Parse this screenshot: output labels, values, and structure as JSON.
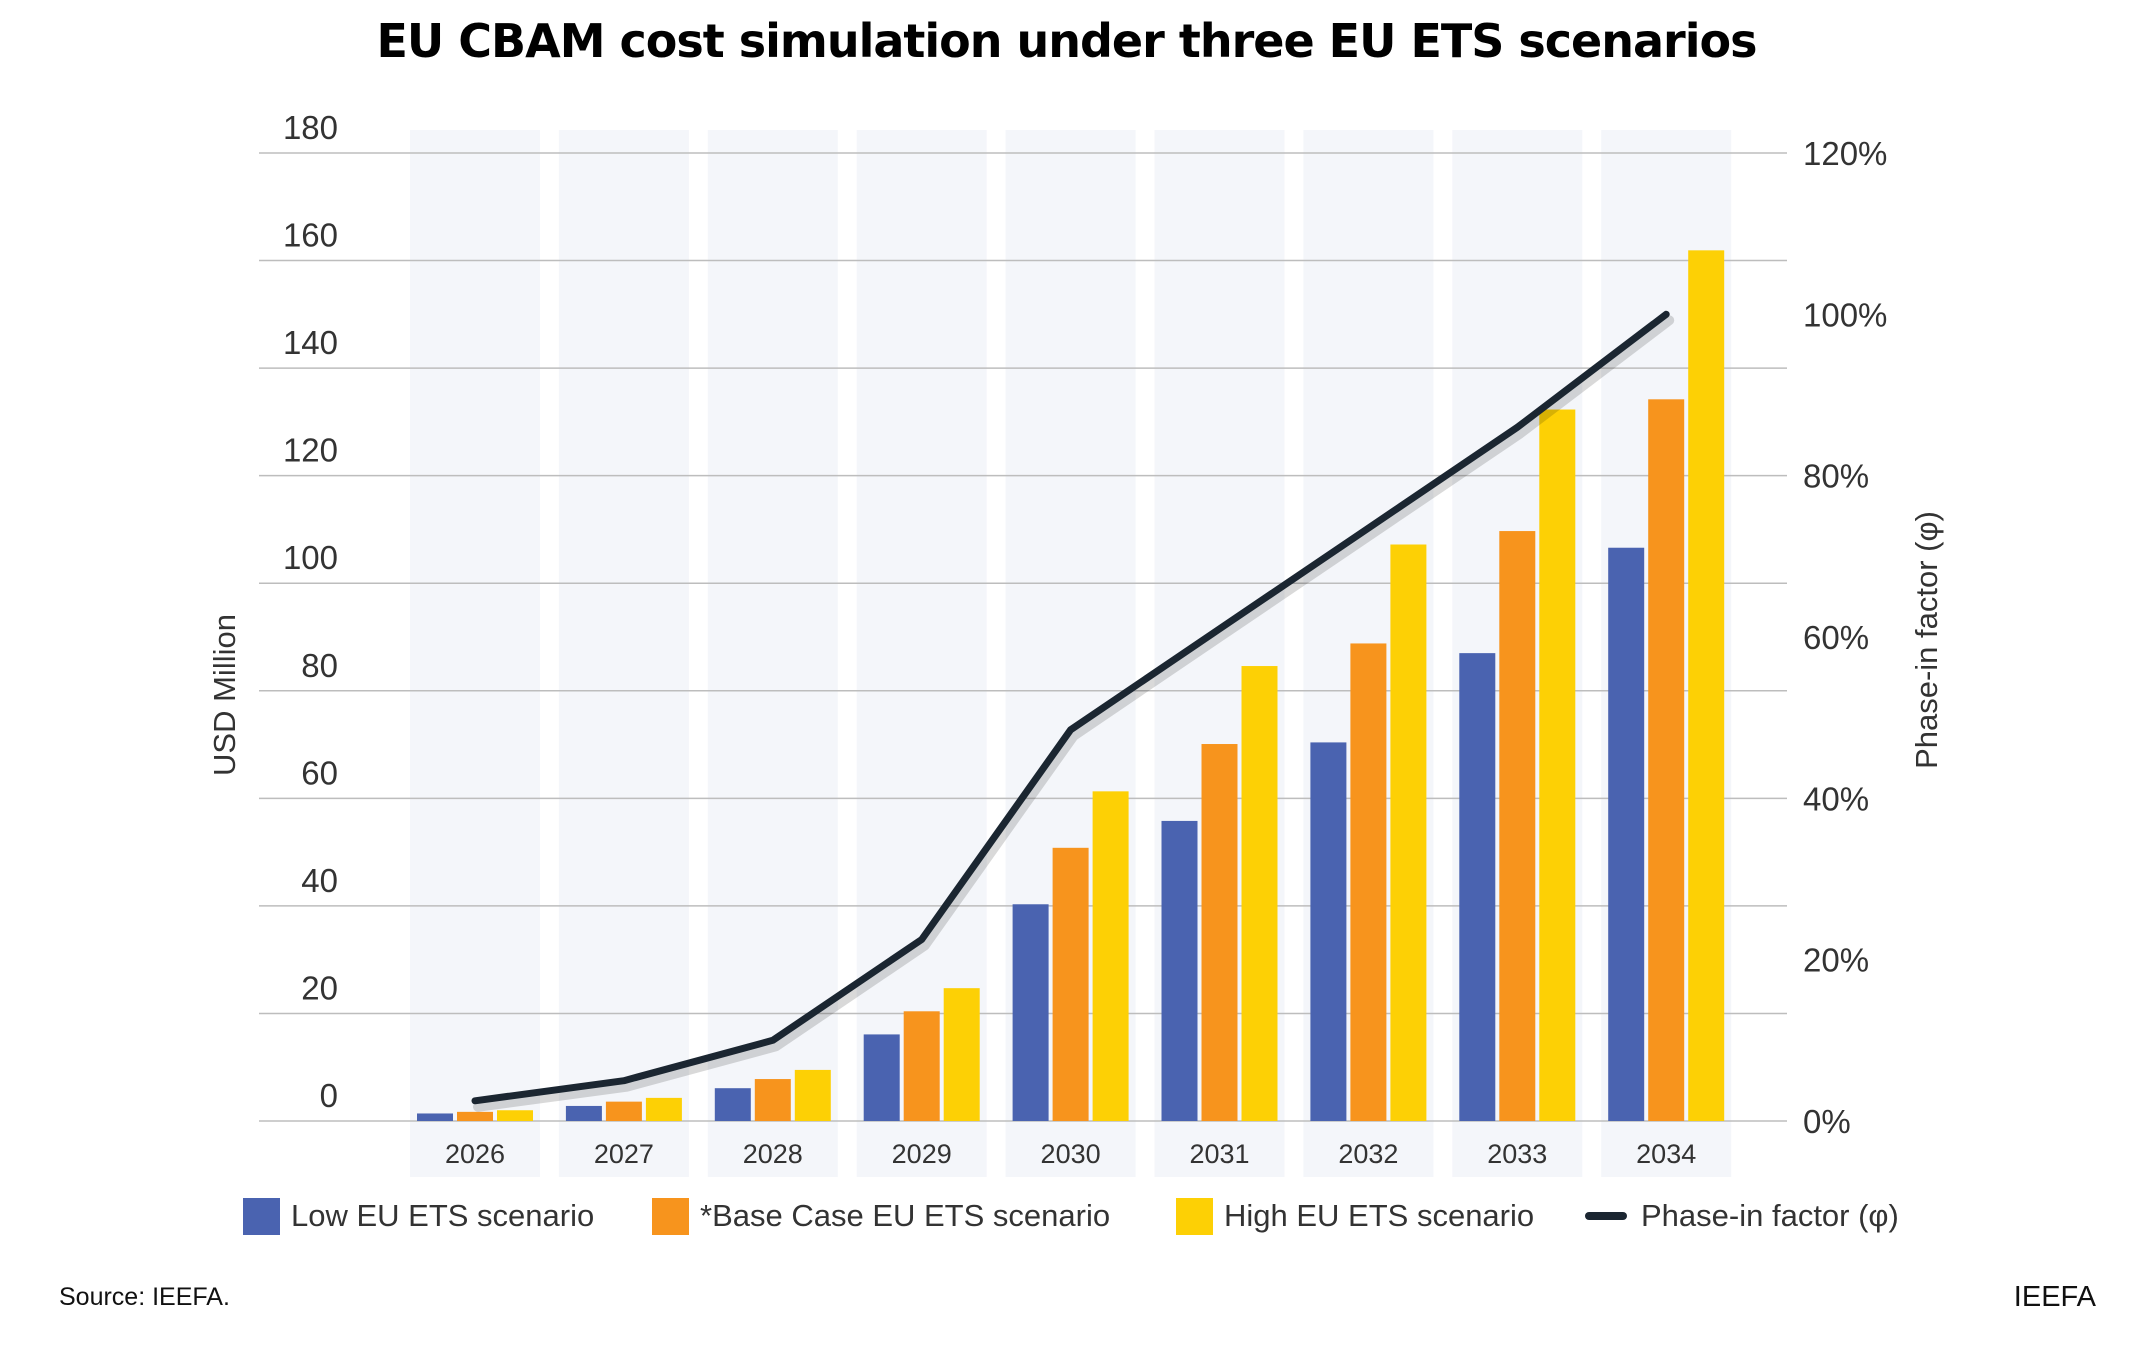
{
  "chart_data": {
    "type": "bar",
    "title": "EU CBAM cost simulation under three EU ETS scenarios",
    "categories": [
      "2026",
      "2027",
      "2028",
      "2029",
      "2030",
      "2031",
      "2032",
      "2033",
      "2034"
    ],
    "series": [
      {
        "name": "Low EU ETS scenario",
        "type": "bar",
        "axis": "left",
        "color": "#4A63B0",
        "values": [
          1.4,
          2.8,
          6.1,
          16.1,
          40.3,
          55.8,
          70.4,
          87.0,
          106.6
        ]
      },
      {
        "name": "*Base Case EU ETS scenario",
        "type": "bar",
        "axis": "left",
        "color": "#F7941D",
        "values": [
          1.7,
          3.6,
          7.8,
          20.4,
          50.8,
          70.1,
          88.8,
          109.7,
          134.2
        ]
      },
      {
        "name": "High EU ETS scenario",
        "type": "bar",
        "axis": "left",
        "color": "#FDD005",
        "values": [
          2.0,
          4.3,
          9.5,
          24.7,
          61.3,
          84.6,
          107.2,
          132.3,
          161.9
        ]
      },
      {
        "name": "Phase-in factor (φ)",
        "type": "line",
        "axis": "right",
        "color": "#1B2631",
        "values": [
          2.5,
          5,
          10,
          22.5,
          48.5,
          61,
          73.5,
          86,
          100
        ]
      }
    ],
    "ylabel": "USD Million",
    "ylim": [
      0,
      180
    ],
    "yticks": [
      "0",
      "20",
      "40",
      "60",
      "80",
      "100",
      "120",
      "140",
      "160",
      "180"
    ],
    "y2label": "Phase-in factor (φ)",
    "y2lim": [
      0,
      120
    ],
    "y2ticks": [
      "0%",
      "20%",
      "40%",
      "60%",
      "80%",
      "100%",
      "120%"
    ],
    "grid": true,
    "legend_position": "bottom",
    "band_color": "#F4F6FA",
    "grid_color": "#BDBDBD"
  },
  "footer": {
    "source": "Source: IEEFA.",
    "brand": "IEEFA"
  }
}
